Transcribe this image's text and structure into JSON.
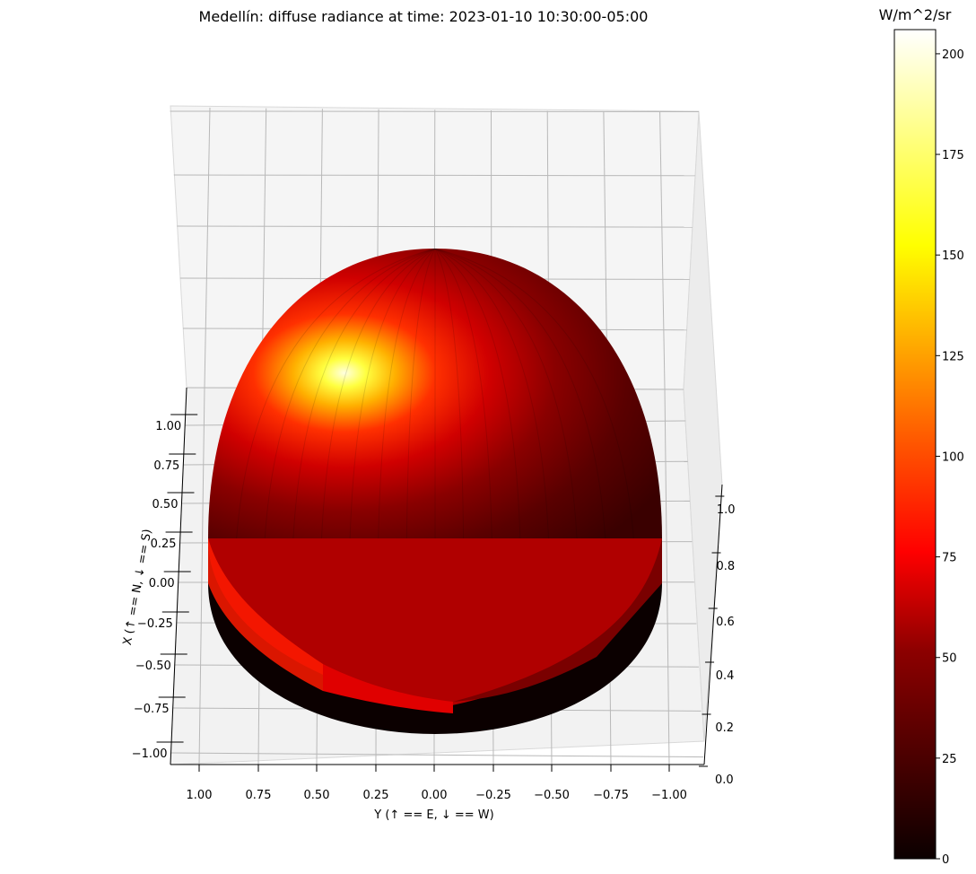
{
  "chart_data": {
    "type": "heatmap",
    "title": "Medellín: diffuse radiance at time: 2023-01-10 10:30:00-05:00",
    "xlabel": "X (↑ == N, ↓ == S)",
    "ylabel": "Y (↑ == E, ↓ == W)",
    "zlabel": "",
    "x_ticks": [
      "1.00",
      "0.75",
      "0.50",
      "0.25",
      "0.00",
      "−0.25",
      "−0.50",
      "−0.75",
      "−1.00"
    ],
    "y_ticks": [
      "1.00",
      "0.75",
      "0.50",
      "0.25",
      "0.00",
      "−0.25",
      "−0.50",
      "−0.75",
      "−1.00"
    ],
    "z_ticks": [
      "0.0",
      "0.2",
      "0.4",
      "0.6",
      "0.8",
      "1.0"
    ],
    "xlim": [
      -1,
      1
    ],
    "ylim": [
      -1,
      1
    ],
    "zlim": [
      0,
      1
    ],
    "colorbar": {
      "title": "W/m^2/sr",
      "colormap": "hot",
      "min": 0,
      "max": 206,
      "ticks": [
        "0",
        "25",
        "50",
        "75",
        "100",
        "125",
        "150",
        "175",
        "200"
      ]
    },
    "peak_radiance": {
      "value": 205,
      "x": 0.45,
      "y": 0.35,
      "description_level": "max"
    },
    "surface": "hemisphere of unit radius, colored by diffuse radiance",
    "grid": true
  },
  "colors": {
    "pane": "#f2f2f2",
    "grid": "#b0b0b0",
    "base": "#0b0000"
  }
}
